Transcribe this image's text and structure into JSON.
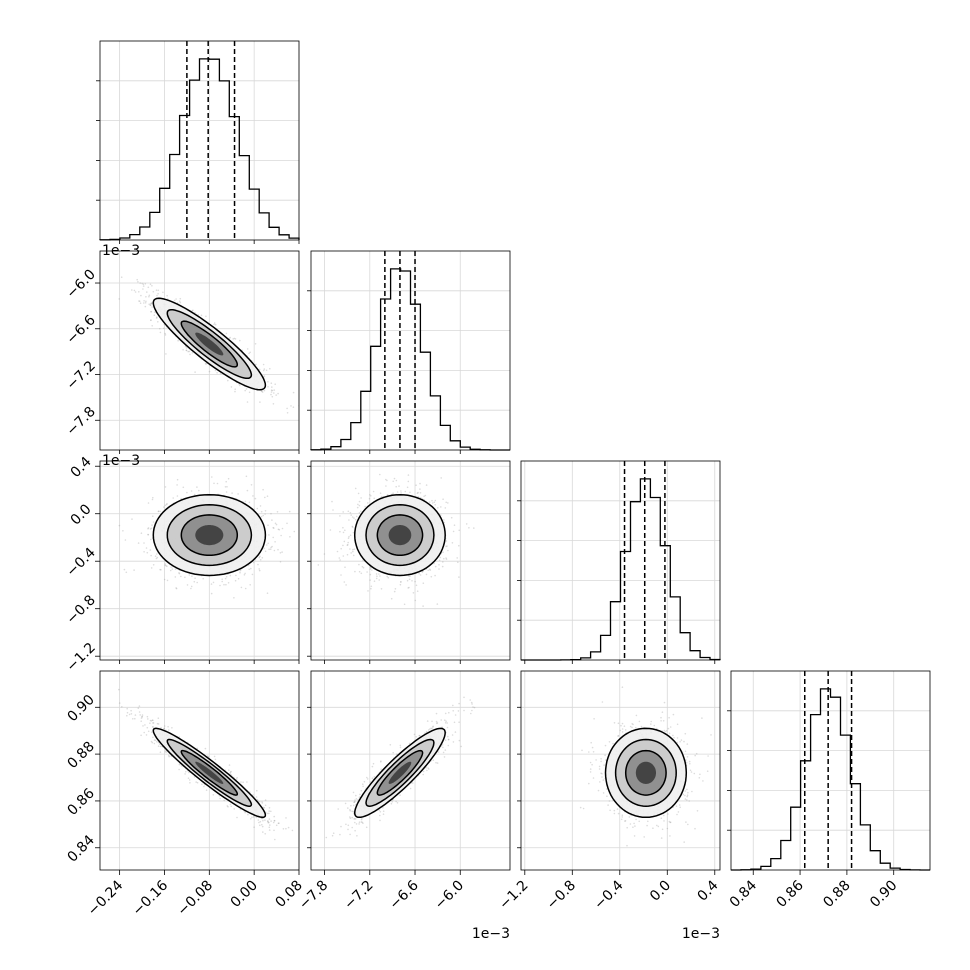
{
  "chart_data": {
    "type": "corner",
    "title": "",
    "x_ticks": [
      {
        "values": [
          -0.24,
          -0.16,
          -0.08,
          0.0,
          0.08
        ],
        "labels": [
          "−0.24",
          "−0.16",
          "−0.08",
          "0.00",
          "0.08"
        ],
        "range": [
          -0.275,
          0.08
        ],
        "offset": ""
      },
      {
        "values": [
          -7.8,
          -7.2,
          -6.6,
          -6.0
        ],
        "labels": [
          "−7.8",
          "−7.2",
          "−6.6",
          "−6.0"
        ],
        "range": [
          -7.98,
          -5.34
        ],
        "offset": "1e−3"
      },
      {
        "values": [
          -1.2,
          -0.8,
          -0.4,
          0.0,
          0.4
        ],
        "labels": [
          "−1.2",
          "−0.8",
          "−0.4",
          "0.0",
          "0.4"
        ],
        "range": [
          -1.232,
          0.444
        ],
        "offset": "1e−3"
      },
      {
        "values": [
          0.84,
          0.86,
          0.88,
          0.9
        ],
        "labels": [
          "0.84",
          "0.86",
          "0.88",
          "0.90"
        ],
        "range": [
          0.8305,
          0.9155
        ],
        "offset": ""
      }
    ],
    "y_ticks": [
      null,
      {
        "values": [
          -6.0,
          -6.6,
          -7.2,
          -7.8
        ],
        "labels": [
          "−6.0",
          "−6.6",
          "−7.2",
          "−7.8"
        ],
        "range": [
          -5.58,
          -8.19
        ],
        "offset": "1e−3"
      },
      {
        "values": [
          0.4,
          0.0,
          -0.4,
          -0.8,
          -1.2
        ],
        "labels": [
          "0.4",
          "0.0",
          "−0.4",
          "−0.8",
          "−1.2"
        ],
        "range": [
          0.444,
          -1.232
        ],
        "offset": "1e−3"
      },
      {
        "values": [
          0.9,
          0.88,
          0.86,
          0.84
        ],
        "labels": [
          "0.90",
          "0.88",
          "0.86",
          "0.84"
        ],
        "range": [
          0.9155,
          0.8305
        ],
        "offset": ""
      }
    ],
    "params": [
      {
        "mean": -0.08,
        "std": 0.05,
        "q16": -0.12,
        "q50": -0.082,
        "q84": -0.035
      },
      {
        "mean": -6.8,
        "std": 0.3,
        "q16": -7.0,
        "q50": -6.8,
        "q84": -6.6
      },
      {
        "mean": -0.18,
        "std": 0.17,
        "q16": -0.36,
        "q50": -0.19,
        "q84": -0.02
      },
      {
        "mean": 0.872,
        "std": 0.0095,
        "q16": 0.862,
        "q50": 0.872,
        "q84": 0.882
      }
    ],
    "correlations": {
      "1-0": -0.9,
      "2-0": 0.0,
      "2-1": 0.0,
      "3-0": -0.95,
      "3-1": 0.9,
      "3-2": 0.0
    },
    "grid": true,
    "histogram_style": "step",
    "quantile_lines": "dashed"
  }
}
